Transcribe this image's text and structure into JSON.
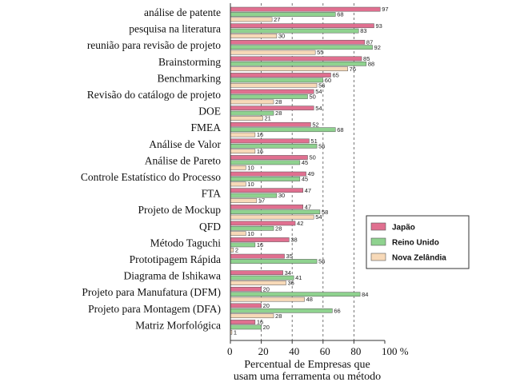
{
  "chart_data": {
    "type": "bar",
    "orientation": "horizontal",
    "categories": [
      "análise de patente",
      "pesquisa na literatura",
      "reunião para revisão de projeto",
      "Brainstorming",
      "Benchmarking",
      "Revisão do catálogo de projeto",
      "DOE",
      "FMEA",
      "Análise de Valor",
      "Análise de Pareto",
      "Controle Estatístico do Processo",
      "FTA",
      "Projeto de Mockup",
      "QFD",
      "Método Taguchi",
      "Prototipagem Rápida",
      "Diagrama de Ishikawa",
      "Projeto para Manufatura (DFM)",
      "Projeto para Montagem (DFA)",
      "Matriz Morfológica"
    ],
    "series": [
      {
        "name": "Japão",
        "color": "#e07090",
        "values": [
          97,
          93,
          87,
          85,
          65,
          54,
          54,
          52,
          51,
          50,
          49,
          47,
          47,
          42,
          38,
          35,
          34,
          20,
          20,
          16
        ]
      },
      {
        "name": "Reino Unido",
        "color": "#8fd28f",
        "values": [
          68,
          83,
          92,
          88,
          60,
          50,
          28,
          68,
          56,
          45,
          45,
          30,
          58,
          28,
          16,
          56,
          41,
          84,
          66,
          20
        ]
      },
      {
        "name": "Nova Zelândia",
        "color": "#f7d9b8",
        "values": [
          27,
          30,
          55,
          76,
          56,
          28,
          21,
          16,
          16,
          10,
          10,
          17,
          54,
          10,
          2,
          null,
          36,
          48,
          28,
          1
        ]
      }
    ],
    "xlim": [
      0,
      100
    ],
    "xticks": [
      "0",
      "20",
      "40",
      "60",
      "80",
      "100 %"
    ],
    "xlabel": [
      "Percentual de Empresas que",
      "usam uma ferramenta ou método"
    ],
    "legend_position": "right",
    "grid": "dashed vertical lines at 20, 40, 60, 80"
  }
}
